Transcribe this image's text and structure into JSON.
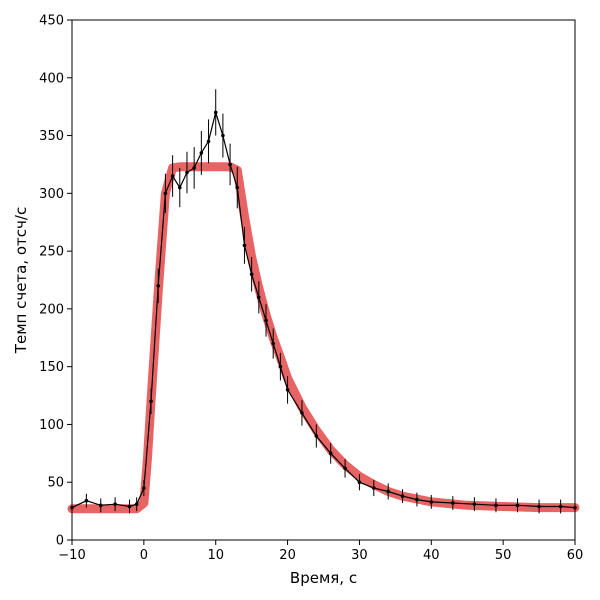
{
  "chart_data": {
    "type": "line",
    "title": "",
    "xlabel": "Время, с",
    "ylabel": "Темп счета, отсч/с",
    "xlim": [
      -10,
      60
    ],
    "ylim": [
      0,
      450
    ],
    "x_ticks": [
      -10,
      0,
      10,
      20,
      30,
      40,
      50,
      60
    ],
    "y_ticks": [
      0,
      50,
      100,
      150,
      200,
      250,
      300,
      350,
      400,
      450
    ],
    "grid": false,
    "legend": "none",
    "series": [
      {
        "style": "points with error bars",
        "color": "#000000",
        "x": [
          -10,
          -8,
          -6,
          -4,
          -2,
          -1,
          0,
          1,
          2,
          3,
          4,
          5,
          6,
          7,
          8,
          9,
          10,
          11,
          12,
          13,
          14,
          15,
          16,
          17,
          18,
          19,
          20,
          22,
          24,
          26,
          28,
          30,
          32,
          34,
          36,
          38,
          40,
          43,
          46,
          49,
          52,
          55,
          58,
          60
        ],
        "y": [
          28,
          34,
          30,
          31,
          29,
          31,
          45,
          120,
          220,
          300,
          315,
          305,
          318,
          322,
          335,
          345,
          370,
          350,
          325,
          305,
          255,
          230,
          210,
          190,
          170,
          150,
          130,
          110,
          90,
          75,
          62,
          50,
          45,
          42,
          38,
          35,
          33,
          32,
          31,
          30,
          30,
          29,
          29,
          28
        ],
        "yerr": [
          6,
          6,
          6,
          6,
          6,
          6,
          7,
          11,
          15,
          17,
          18,
          17,
          18,
          18,
          19,
          19,
          20,
          19,
          18,
          18,
          16,
          15,
          14,
          14,
          13,
          12,
          12,
          11,
          10,
          9,
          8,
          7,
          7,
          7,
          6,
          6,
          6,
          6,
          6,
          6,
          6,
          6,
          6,
          6
        ]
      },
      {
        "style": "model curve",
        "color": "#e03030",
        "x": [
          -10,
          -1,
          0,
          0.5,
          1,
          2,
          3,
          4,
          5,
          8,
          10,
          12,
          13,
          14,
          15,
          16,
          17,
          18,
          19,
          20,
          22,
          24,
          26,
          28,
          30,
          32,
          34,
          36,
          40,
          45,
          50,
          55,
          60
        ],
        "y": [
          27,
          27,
          32,
          70,
          120,
          215,
          300,
          322,
          323,
          323,
          323,
          323,
          320,
          280,
          245,
          218,
          195,
          175,
          158,
          140,
          115,
          95,
          78,
          65,
          55,
          48,
          42,
          38,
          33,
          30,
          29,
          28,
          28
        ]
      }
    ]
  }
}
